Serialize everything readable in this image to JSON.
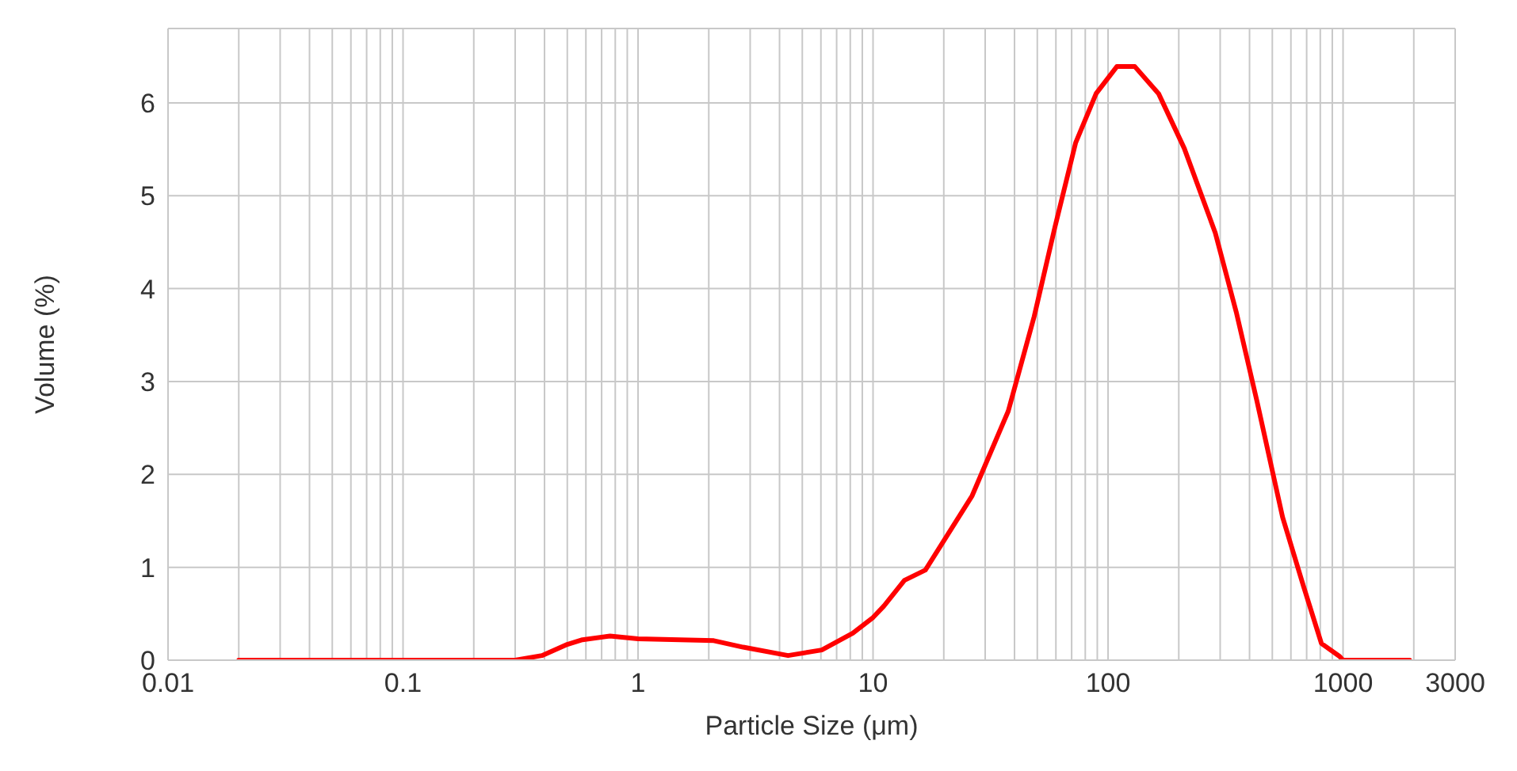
{
  "chart_data": {
    "type": "line",
    "xlabel": "Particle Size (μm)",
    "ylabel": "Volume (%)",
    "log": "x",
    "grid": true,
    "legend": false,
    "marker": "none",
    "line_style": "solid",
    "xlim": [
      0.01,
      3000
    ],
    "ylim": [
      0,
      6.8
    ],
    "xticks": [
      0.01,
      {
        "value": 0.02,
        "label": null
      },
      {
        "value": 0.03,
        "label": null
      },
      {
        "value": 0.04,
        "label": null
      },
      {
        "value": 0.05,
        "label": null
      },
      {
        "value": 0.06,
        "label": null
      },
      {
        "value": 0.07,
        "label": null
      },
      {
        "value": 0.08,
        "label": null
      },
      {
        "value": 0.09,
        "label": null
      },
      0.1,
      {
        "value": 0.2,
        "label": null
      },
      {
        "value": 0.3,
        "label": null
      },
      {
        "value": 0.4,
        "label": null
      },
      {
        "value": 0.5,
        "label": null
      },
      {
        "value": 0.6,
        "label": null
      },
      {
        "value": 0.7,
        "label": null
      },
      {
        "value": 0.8,
        "label": null
      },
      {
        "value": 0.9,
        "label": null
      },
      1,
      {
        "value": 2,
        "label": null
      },
      {
        "value": 3,
        "label": null
      },
      {
        "value": 4,
        "label": null
      },
      {
        "value": 5,
        "label": null
      },
      {
        "value": 6,
        "label": null
      },
      {
        "value": 7,
        "label": null
      },
      {
        "value": 8,
        "label": null
      },
      {
        "value": 9,
        "label": null
      },
      10,
      {
        "value": 20,
        "label": null
      },
      {
        "value": 30,
        "label": null
      },
      {
        "value": 40,
        "label": null
      },
      {
        "value": 50,
        "label": null
      },
      {
        "value": 60,
        "label": null
      },
      {
        "value": 70,
        "label": null
      },
      {
        "value": 80,
        "label": null
      },
      {
        "value": 90,
        "label": null
      },
      100,
      {
        "value": 200,
        "label": null
      },
      {
        "value": 300,
        "label": null
      },
      {
        "value": 400,
        "label": null
      },
      {
        "value": 500,
        "label": null
      },
      {
        "value": 600,
        "label": null
      },
      {
        "value": 700,
        "label": null
      },
      {
        "value": 800,
        "label": null
      },
      {
        "value": 900,
        "label": null
      },
      1000,
      {
        "value": 2000,
        "label": null
      },
      3000
    ],
    "yticks": [
      0,
      1,
      2,
      3,
      4,
      5,
      6
    ],
    "series": [
      {
        "color": "#ff0000",
        "x": [
          0.02,
          0.1,
          0.3,
          0.39,
          0.5,
          0.58,
          0.76,
          1.0,
          2.1,
          2.8,
          4.35,
          6.05,
          8.2,
          10,
          11.1,
          13.6,
          16.7,
          26.4,
          37.6,
          48.5,
          59.4,
          72.8,
          89,
          109,
          130,
          164,
          211,
          286,
          351,
          430,
          553,
          678,
          809,
          967,
          1000,
          1920
        ],
        "values": [
          0,
          0,
          0,
          0.05,
          0.17,
          0.22,
          0.26,
          0.23,
          0.21,
          0.14,
          0.05,
          0.11,
          0.29,
          0.46,
          0.58,
          0.86,
          0.97,
          1.77,
          2.68,
          3.7,
          4.66,
          5.57,
          6.1,
          6.39,
          6.39,
          6.1,
          5.51,
          4.6,
          3.75,
          2.79,
          1.54,
          0.8,
          0.18,
          0.04,
          0,
          0
        ]
      }
    ]
  }
}
